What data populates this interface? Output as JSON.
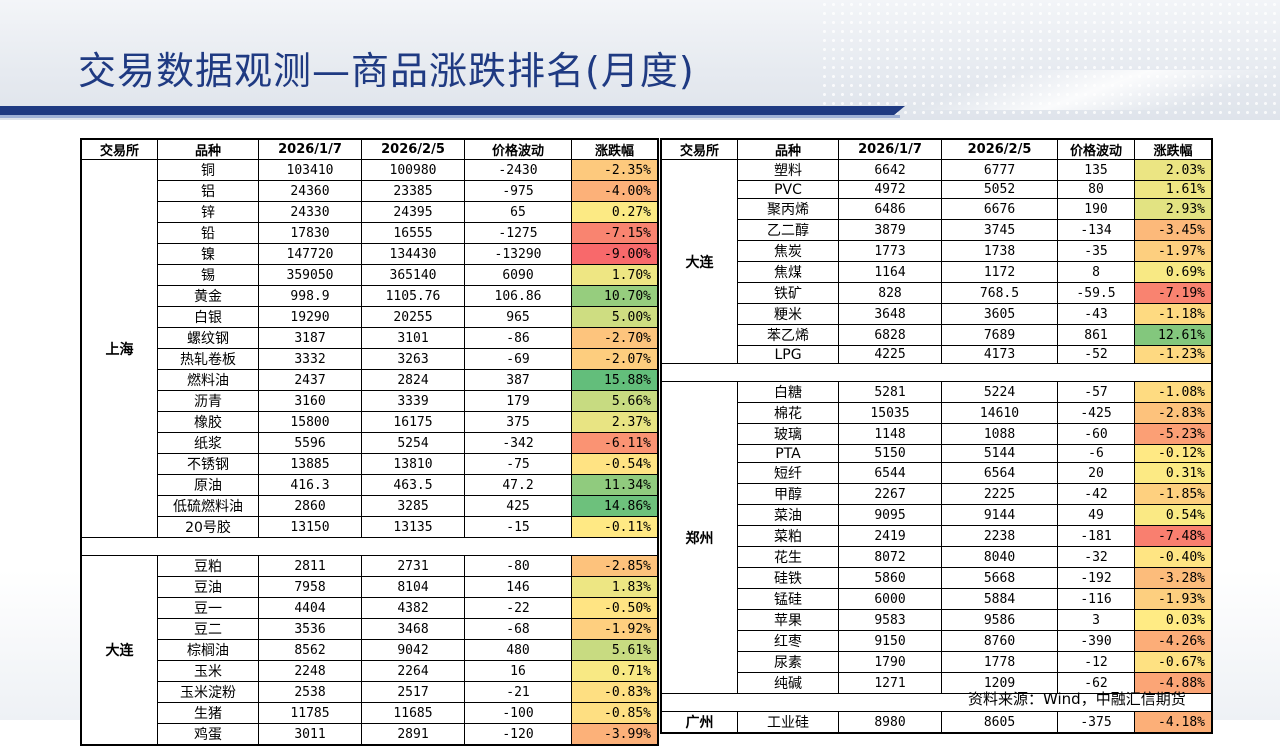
{
  "title": "交易数据观测—商品涨跌排名(月度)",
  "source": "资料来源：Wind，中融汇信期货",
  "headers": [
    "交易所",
    "品种",
    "2026/1/7",
    "2026/2/5",
    "价格波动",
    "涨跌幅"
  ],
  "left": {
    "groups": [
      {
        "exchange": "上海",
        "rows": [
          {
            "name": "铜",
            "p1": "103410",
            "p2": "100980",
            "chg": "-2430",
            "pct": "-2.35%",
            "v": -2.35
          },
          {
            "name": "铝",
            "p1": "24360",
            "p2": "23385",
            "chg": "-975",
            "pct": "-4.00%",
            "v": -4.0
          },
          {
            "name": "锌",
            "p1": "24330",
            "p2": "24395",
            "chg": "65",
            "pct": "0.27%",
            "v": 0.27
          },
          {
            "name": "铅",
            "p1": "17830",
            "p2": "16555",
            "chg": "-1275",
            "pct": "-7.15%",
            "v": -7.15
          },
          {
            "name": "镍",
            "p1": "147720",
            "p2": "134430",
            "chg": "-13290",
            "pct": "-9.00%",
            "v": -9.0
          },
          {
            "name": "锡",
            "p1": "359050",
            "p2": "365140",
            "chg": "6090",
            "pct": "1.70%",
            "v": 1.7
          },
          {
            "name": "黄金",
            "p1": "998.9",
            "p2": "1105.76",
            "chg": "106.86",
            "pct": "10.70%",
            "v": 10.7
          },
          {
            "name": "白银",
            "p1": "19290",
            "p2": "20255",
            "chg": "965",
            "pct": "5.00%",
            "v": 5.0
          },
          {
            "name": "螺纹钢",
            "p1": "3187",
            "p2": "3101",
            "chg": "-86",
            "pct": "-2.70%",
            "v": -2.7
          },
          {
            "name": "热轧卷板",
            "p1": "3332",
            "p2": "3263",
            "chg": "-69",
            "pct": "-2.07%",
            "v": -2.07
          },
          {
            "name": "燃料油",
            "p1": "2437",
            "p2": "2824",
            "chg": "387",
            "pct": "15.88%",
            "v": 15.88
          },
          {
            "name": "沥青",
            "p1": "3160",
            "p2": "3339",
            "chg": "179",
            "pct": "5.66%",
            "v": 5.66
          },
          {
            "name": "橡胶",
            "p1": "15800",
            "p2": "16175",
            "chg": "375",
            "pct": "2.37%",
            "v": 2.37
          },
          {
            "name": "纸浆",
            "p1": "5596",
            "p2": "5254",
            "chg": "-342",
            "pct": "-6.11%",
            "v": -6.11
          },
          {
            "name": "不锈钢",
            "p1": "13885",
            "p2": "13810",
            "chg": "-75",
            "pct": "-0.54%",
            "v": -0.54
          },
          {
            "name": "原油",
            "p1": "416.3",
            "p2": "463.5",
            "chg": "47.2",
            "pct": "11.34%",
            "v": 11.34
          },
          {
            "name": "低硫燃料油",
            "p1": "2860",
            "p2": "3285",
            "chg": "425",
            "pct": "14.86%",
            "v": 14.86
          },
          {
            "name": "20号胶",
            "p1": "13150",
            "p2": "13135",
            "chg": "-15",
            "pct": "-0.11%",
            "v": -0.11
          }
        ]
      },
      {
        "exchange": "大连",
        "rows": [
          {
            "name": "豆粕",
            "p1": "2811",
            "p2": "2731",
            "chg": "-80",
            "pct": "-2.85%",
            "v": -2.85
          },
          {
            "name": "豆油",
            "p1": "7958",
            "p2": "8104",
            "chg": "146",
            "pct": "1.83%",
            "v": 1.83
          },
          {
            "name": "豆一",
            "p1": "4404",
            "p2": "4382",
            "chg": "-22",
            "pct": "-0.50%",
            "v": -0.5
          },
          {
            "name": "豆二",
            "p1": "3536",
            "p2": "3468",
            "chg": "-68",
            "pct": "-1.92%",
            "v": -1.92
          },
          {
            "name": "棕榈油",
            "p1": "8562",
            "p2": "9042",
            "chg": "480",
            "pct": "5.61%",
            "v": 5.61
          },
          {
            "name": "玉米",
            "p1": "2248",
            "p2": "2264",
            "chg": "16",
            "pct": "0.71%",
            "v": 0.71
          },
          {
            "name": "玉米淀粉",
            "p1": "2538",
            "p2": "2517",
            "chg": "-21",
            "pct": "-0.83%",
            "v": -0.83
          },
          {
            "name": "生猪",
            "p1": "11785",
            "p2": "11685",
            "chg": "-100",
            "pct": "-0.85%",
            "v": -0.85
          },
          {
            "name": "鸡蛋",
            "p1": "3011",
            "p2": "2891",
            "chg": "-120",
            "pct": "-3.99%",
            "v": -3.99
          }
        ]
      }
    ]
  },
  "right": {
    "groups": [
      {
        "exchange": "大连",
        "rows": [
          {
            "name": "塑料",
            "p1": "6642",
            "p2": "6777",
            "chg": "135",
            "pct": "2.03%",
            "v": 2.03
          },
          {
            "name": "PVC",
            "p1": "4972",
            "p2": "5052",
            "chg": "80",
            "pct": "1.61%",
            "v": 1.61
          },
          {
            "name": "聚丙烯",
            "p1": "6486",
            "p2": "6676",
            "chg": "190",
            "pct": "2.93%",
            "v": 2.93
          },
          {
            "name": "乙二醇",
            "p1": "3879",
            "p2": "3745",
            "chg": "-134",
            "pct": "-3.45%",
            "v": -3.45
          },
          {
            "name": "焦炭",
            "p1": "1773",
            "p2": "1738",
            "chg": "-35",
            "pct": "-1.97%",
            "v": -1.97
          },
          {
            "name": "焦煤",
            "p1": "1164",
            "p2": "1172",
            "chg": "8",
            "pct": "0.69%",
            "v": 0.69
          },
          {
            "name": "铁矿",
            "p1": "828",
            "p2": "768.5",
            "chg": "-59.5",
            "pct": "-7.19%",
            "v": -7.19
          },
          {
            "name": "粳米",
            "p1": "3648",
            "p2": "3605",
            "chg": "-43",
            "pct": "-1.18%",
            "v": -1.18
          },
          {
            "name": "苯乙烯",
            "p1": "6828",
            "p2": "7689",
            "chg": "861",
            "pct": "12.61%",
            "v": 12.61
          },
          {
            "name": "LPG",
            "p1": "4225",
            "p2": "4173",
            "chg": "-52",
            "pct": "-1.23%",
            "v": -1.23
          }
        ]
      },
      {
        "exchange": "郑州",
        "rows": [
          {
            "name": "白糖",
            "p1": "5281",
            "p2": "5224",
            "chg": "-57",
            "pct": "-1.08%",
            "v": -1.08
          },
          {
            "name": "棉花",
            "p1": "15035",
            "p2": "14610",
            "chg": "-425",
            "pct": "-2.83%",
            "v": -2.83
          },
          {
            "name": "玻璃",
            "p1": "1148",
            "p2": "1088",
            "chg": "-60",
            "pct": "-5.23%",
            "v": -5.23
          },
          {
            "name": "PTA",
            "p1": "5150",
            "p2": "5144",
            "chg": "-6",
            "pct": "-0.12%",
            "v": -0.12
          },
          {
            "name": "短纤",
            "p1": "6544",
            "p2": "6564",
            "chg": "20",
            "pct": "0.31%",
            "v": 0.31
          },
          {
            "name": "甲醇",
            "p1": "2267",
            "p2": "2225",
            "chg": "-42",
            "pct": "-1.85%",
            "v": -1.85
          },
          {
            "name": "菜油",
            "p1": "9095",
            "p2": "9144",
            "chg": "49",
            "pct": "0.54%",
            "v": 0.54
          },
          {
            "name": "菜粕",
            "p1": "2419",
            "p2": "2238",
            "chg": "-181",
            "pct": "-7.48%",
            "v": -7.48
          },
          {
            "name": "花生",
            "p1": "8072",
            "p2": "8040",
            "chg": "-32",
            "pct": "-0.40%",
            "v": -0.4
          },
          {
            "name": "硅铁",
            "p1": "5860",
            "p2": "5668",
            "chg": "-192",
            "pct": "-3.28%",
            "v": -3.28
          },
          {
            "name": "锰硅",
            "p1": "6000",
            "p2": "5884",
            "chg": "-116",
            "pct": "-1.93%",
            "v": -1.93
          },
          {
            "name": "苹果",
            "p1": "9583",
            "p2": "9586",
            "chg": "3",
            "pct": "0.03%",
            "v": 0.03
          },
          {
            "name": "红枣",
            "p1": "9150",
            "p2": "8760",
            "chg": "-390",
            "pct": "-4.26%",
            "v": -4.26
          },
          {
            "name": "尿素",
            "p1": "1790",
            "p2": "1778",
            "chg": "-12",
            "pct": "-0.67%",
            "v": -0.67
          },
          {
            "name": "纯碱",
            "p1": "1271",
            "p2": "1209",
            "chg": "-62",
            "pct": "-4.88%",
            "v": -4.88
          }
        ]
      },
      {
        "exchange": "广州",
        "rows": [
          {
            "name": "工业硅",
            "p1": "8980",
            "p2": "8605",
            "chg": "-375",
            "pct": "-4.18%",
            "v": -4.18
          }
        ]
      }
    ]
  }
}
